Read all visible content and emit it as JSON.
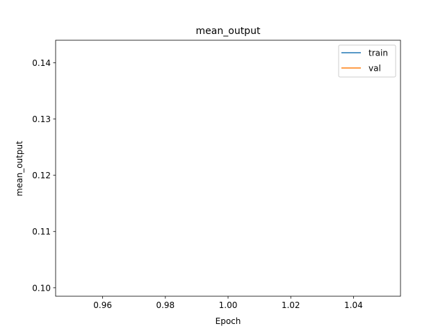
{
  "chart_data": {
    "type": "line",
    "title": "mean_output",
    "xlabel": "Epoch",
    "ylabel": "mean_output",
    "xlim": [
      0.945,
      1.055
    ],
    "ylim": [
      0.0985,
      0.144
    ],
    "x_ticks": [
      0.96,
      0.98,
      1.0,
      1.02,
      1.04
    ],
    "x_tick_labels": [
      "0.96",
      "0.98",
      "1.00",
      "1.02",
      "1.04"
    ],
    "y_ticks": [
      0.1,
      0.11,
      0.12,
      0.13,
      0.14
    ],
    "y_tick_labels": [
      "0.10",
      "0.11",
      "0.12",
      "0.13",
      "0.14"
    ],
    "grid": false,
    "legend_position": "top-right",
    "series": [
      {
        "name": "train",
        "color": "#1f77b4",
        "x": [],
        "y": []
      },
      {
        "name": "val",
        "color": "#ff7f0e",
        "x": [],
        "y": []
      }
    ]
  }
}
